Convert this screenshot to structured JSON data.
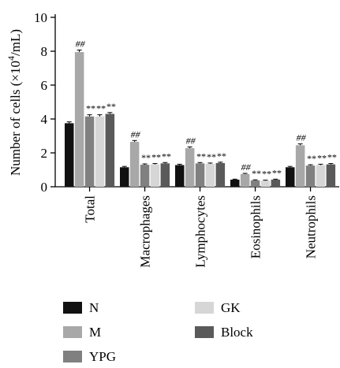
{
  "chart_data": {
    "type": "bar",
    "categories": [
      "Total",
      "Macrophages",
      "Lymphocytes",
      "Eosinophils",
      "Neutrophils"
    ],
    "ylabel_prefix": "Number of cells (×10",
    "ylabel_sup": "4",
    "ylabel_suffix": "/mL)",
    "ylim": [
      0,
      10
    ],
    "yticks": [
      "0",
      "2",
      "4",
      "6",
      "8",
      "10"
    ],
    "grid": false,
    "legend_position": "bottom",
    "series": [
      {
        "name": "N",
        "color": "#111111",
        "values": [
          3.75,
          1.15,
          1.28,
          0.42,
          1.15
        ],
        "errors": [
          0.08,
          0.05,
          0.05,
          0.03,
          0.05
        ],
        "marks": [
          "",
          "",
          "",
          "",
          ""
        ]
      },
      {
        "name": "M",
        "color": "#a8a8a8",
        "values": [
          7.95,
          2.65,
          2.28,
          0.75,
          2.45
        ],
        "errors": [
          0.12,
          0.08,
          0.07,
          0.04,
          0.08
        ],
        "marks": [
          "##",
          "##",
          "##",
          "##",
          "##"
        ]
      },
      {
        "name": "YPG",
        "color": "#808080",
        "values": [
          4.15,
          1.3,
          1.38,
          0.38,
          1.25
        ],
        "errors": [
          0.1,
          0.05,
          0.05,
          0.03,
          0.05
        ],
        "marks": [
          "**",
          "**",
          "**",
          "**",
          "**"
        ]
      },
      {
        "name": "GK",
        "color": "#d6d6d6",
        "values": [
          4.15,
          1.32,
          1.35,
          0.36,
          1.28
        ],
        "errors": [
          0.1,
          0.05,
          0.05,
          0.03,
          0.05
        ],
        "marks": [
          "**",
          "**",
          "**",
          "**",
          "**"
        ]
      },
      {
        "name": "Block",
        "color": "#5a5a5a",
        "values": [
          4.3,
          1.38,
          1.4,
          0.42,
          1.32
        ],
        "errors": [
          0.08,
          0.05,
          0.05,
          0.03,
          0.05
        ],
        "marks": [
          "**",
          "**",
          "**",
          "**",
          "**"
        ]
      }
    ]
  }
}
